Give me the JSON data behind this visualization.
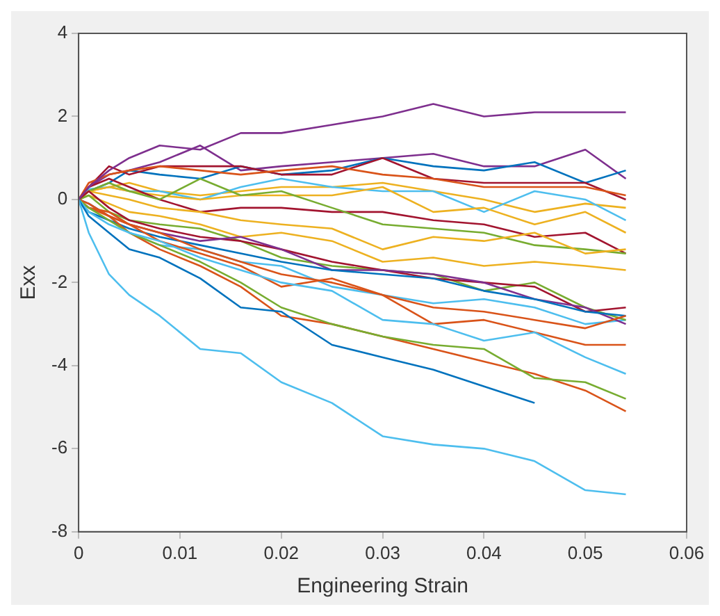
{
  "chart_data": {
    "type": "line",
    "xlabel": "Engineering Strain",
    "ylabel": "Exx",
    "x": [
      0,
      0.001,
      0.003,
      0.005,
      0.008,
      0.012,
      0.016,
      0.02,
      0.025,
      0.03,
      0.035,
      0.04,
      0.045,
      0.05,
      0.054
    ],
    "xlim": [
      0,
      0.06
    ],
    "xticks": [
      0,
      0.01,
      0.02,
      0.03,
      0.04,
      0.05,
      0.06
    ],
    "ylim": [
      -8,
      4
    ],
    "yticks": [
      -8,
      -6,
      -4,
      -2,
      0,
      2,
      4
    ],
    "grid": false,
    "legend": false,
    "marker": "none",
    "line_style": "solid",
    "series": [
      {
        "color": "#7e2f8e",
        "values": [
          0,
          0.3,
          0.7,
          1.0,
          1.3,
          1.2,
          1.6,
          1.6,
          1.8,
          2.0,
          2.3,
          2.0,
          2.1,
          2.1,
          2.1
        ]
      },
      {
        "color": "#4dbeee",
        "values": [
          0,
          -0.8,
          -1.8,
          -2.3,
          -2.8,
          -3.6,
          -3.7,
          -4.4,
          -4.9,
          -5.7,
          -5.9,
          -6.0,
          -6.3,
          -7.0,
          -7.1
        ]
      },
      {
        "color": "#0072bd",
        "values": [
          0,
          -0.4,
          -0.8,
          -1.2,
          -1.4,
          -1.9,
          -2.6,
          -2.7,
          -3.5,
          -3.8,
          -4.1,
          -4.5,
          -4.9,
          null,
          null
        ]
      },
      {
        "color": "#4dbeee",
        "values": [
          0,
          -0.3,
          -0.6,
          -0.8,
          -1.0,
          -1.4,
          -1.7,
          -2.0,
          -2.2,
          -2.9,
          -3.0,
          -3.4,
          -3.2,
          -3.8,
          -4.2
        ]
      },
      {
        "color": "#77ac30",
        "values": [
          0,
          -0.2,
          -0.5,
          -0.8,
          -1.1,
          -1.5,
          -2.0,
          -2.6,
          -3.0,
          -3.3,
          -3.5,
          -3.6,
          -4.3,
          -4.4,
          -4.8
        ]
      },
      {
        "color": "#d95319",
        "values": [
          0,
          -0.2,
          -0.4,
          -0.8,
          -1.2,
          -1.6,
          -2.1,
          -2.8,
          -3.0,
          -3.3,
          -3.6,
          -3.9,
          -4.2,
          -4.6,
          -5.1
        ]
      },
      {
        "color": "#d95319",
        "values": [
          0,
          -0.1,
          -0.4,
          -0.6,
          -1.0,
          -1.3,
          -1.6,
          -2.1,
          -1.9,
          -2.3,
          -3.0,
          -2.9,
          -3.2,
          -3.5,
          -3.5
        ]
      },
      {
        "color": "#d95319",
        "values": [
          0,
          -0.2,
          -0.3,
          -0.6,
          -0.8,
          -1.2,
          -1.5,
          -1.8,
          -2.0,
          -2.3,
          -2.6,
          -2.7,
          -2.9,
          -3.1,
          -2.8
        ]
      },
      {
        "color": "#0072bd",
        "values": [
          0,
          -0.3,
          -0.5,
          -0.7,
          -0.9,
          -1.1,
          -1.3,
          -1.5,
          -1.7,
          -1.8,
          -1.9,
          -2.2,
          -2.4,
          -2.7,
          -2.8
        ]
      },
      {
        "color": "#7e2f8e",
        "values": [
          0,
          -0.1,
          -0.4,
          -0.6,
          -0.8,
          -1.0,
          -0.9,
          -1.2,
          -1.7,
          -1.7,
          -1.8,
          -2.0,
          -2.4,
          -2.6,
          -3.0
        ]
      },
      {
        "color": "#a2142f",
        "values": [
          0,
          0.2,
          -0.2,
          -0.5,
          -0.7,
          -0.9,
          -1.0,
          -1.2,
          -1.5,
          -1.7,
          -1.9,
          -2.0,
          -2.1,
          -2.7,
          -2.6
        ]
      },
      {
        "color": "#77ac30",
        "values": [
          0,
          0.1,
          -0.3,
          -0.5,
          -0.6,
          -0.7,
          -1.0,
          -1.4,
          -1.6,
          -1.7,
          -1.8,
          -2.2,
          -2.0,
          -2.6,
          -2.9
        ]
      },
      {
        "color": "#4dbeee",
        "values": [
          0,
          -0.1,
          -0.4,
          -0.8,
          -1.1,
          -1.2,
          -1.5,
          -1.6,
          -2.1,
          -2.3,
          -2.5,
          -2.4,
          -2.6,
          -3.0,
          -2.9
        ]
      },
      {
        "color": "#edb120",
        "values": [
          0,
          0.1,
          -0.1,
          -0.3,
          -0.4,
          -0.6,
          -0.9,
          -0.8,
          -1.0,
          -1.5,
          -1.4,
          -1.6,
          -1.5,
          -1.6,
          -1.7
        ]
      },
      {
        "color": "#edb120",
        "values": [
          0,
          0.2,
          0.1,
          0.0,
          -0.2,
          -0.3,
          -0.5,
          -0.6,
          -0.7,
          -1.2,
          -0.9,
          -1.0,
          -0.8,
          -1.3,
          -1.2
        ]
      },
      {
        "color": "#77ac30",
        "values": [
          0,
          0.2,
          0.4,
          0.2,
          0.0,
          0.5,
          0.1,
          0.2,
          -0.2,
          -0.6,
          -0.7,
          -0.8,
          -1.1,
          -1.2,
          -1.3
        ]
      },
      {
        "color": "#a2142f",
        "values": [
          0,
          0.3,
          0.5,
          0.3,
          0.0,
          -0.3,
          -0.2,
          -0.2,
          -0.3,
          -0.3,
          -0.5,
          -0.6,
          -0.9,
          -0.8,
          -1.3
        ]
      },
      {
        "color": "#edb120",
        "values": [
          0,
          0.2,
          0.3,
          0.2,
          0.1,
          0.0,
          0.1,
          0.1,
          0.1,
          0.3,
          -0.3,
          -0.2,
          -0.6,
          -0.3,
          -0.8
        ]
      },
      {
        "color": "#4dbeee",
        "values": [
          0,
          0.25,
          0.3,
          0.2,
          0.2,
          0.0,
          0.3,
          0.5,
          0.3,
          0.2,
          0.2,
          -0.3,
          0.2,
          0.0,
          -0.5
        ]
      },
      {
        "color": "#d95319",
        "values": [
          0,
          0.4,
          0.6,
          0.7,
          0.8,
          0.7,
          0.6,
          0.7,
          0.8,
          0.6,
          0.5,
          0.3,
          0.3,
          0.3,
          0.1
        ]
      },
      {
        "color": "#a2142f",
        "values": [
          0,
          0.3,
          0.8,
          0.6,
          0.8,
          0.8,
          0.8,
          0.6,
          0.6,
          1.0,
          0.5,
          0.4,
          0.4,
          0.4,
          0.0
        ]
      },
      {
        "color": "#0072bd",
        "values": [
          0,
          0.2,
          0.4,
          0.7,
          0.6,
          0.5,
          0.8,
          0.6,
          0.7,
          1.0,
          0.8,
          0.7,
          0.9,
          0.4,
          0.7
        ]
      },
      {
        "color": "#7e2f8e",
        "values": [
          0,
          0.3,
          0.6,
          0.7,
          0.9,
          1.3,
          0.7,
          0.8,
          0.9,
          1.0,
          1.1,
          0.8,
          0.8,
          1.2,
          0.5
        ]
      },
      {
        "color": "#edb120",
        "values": [
          0,
          0.2,
          0.3,
          0.4,
          0.2,
          0.1,
          0.2,
          0.3,
          0.3,
          0.4,
          0.2,
          0.0,
          -0.3,
          -0.1,
          -0.2
        ]
      }
    ]
  }
}
